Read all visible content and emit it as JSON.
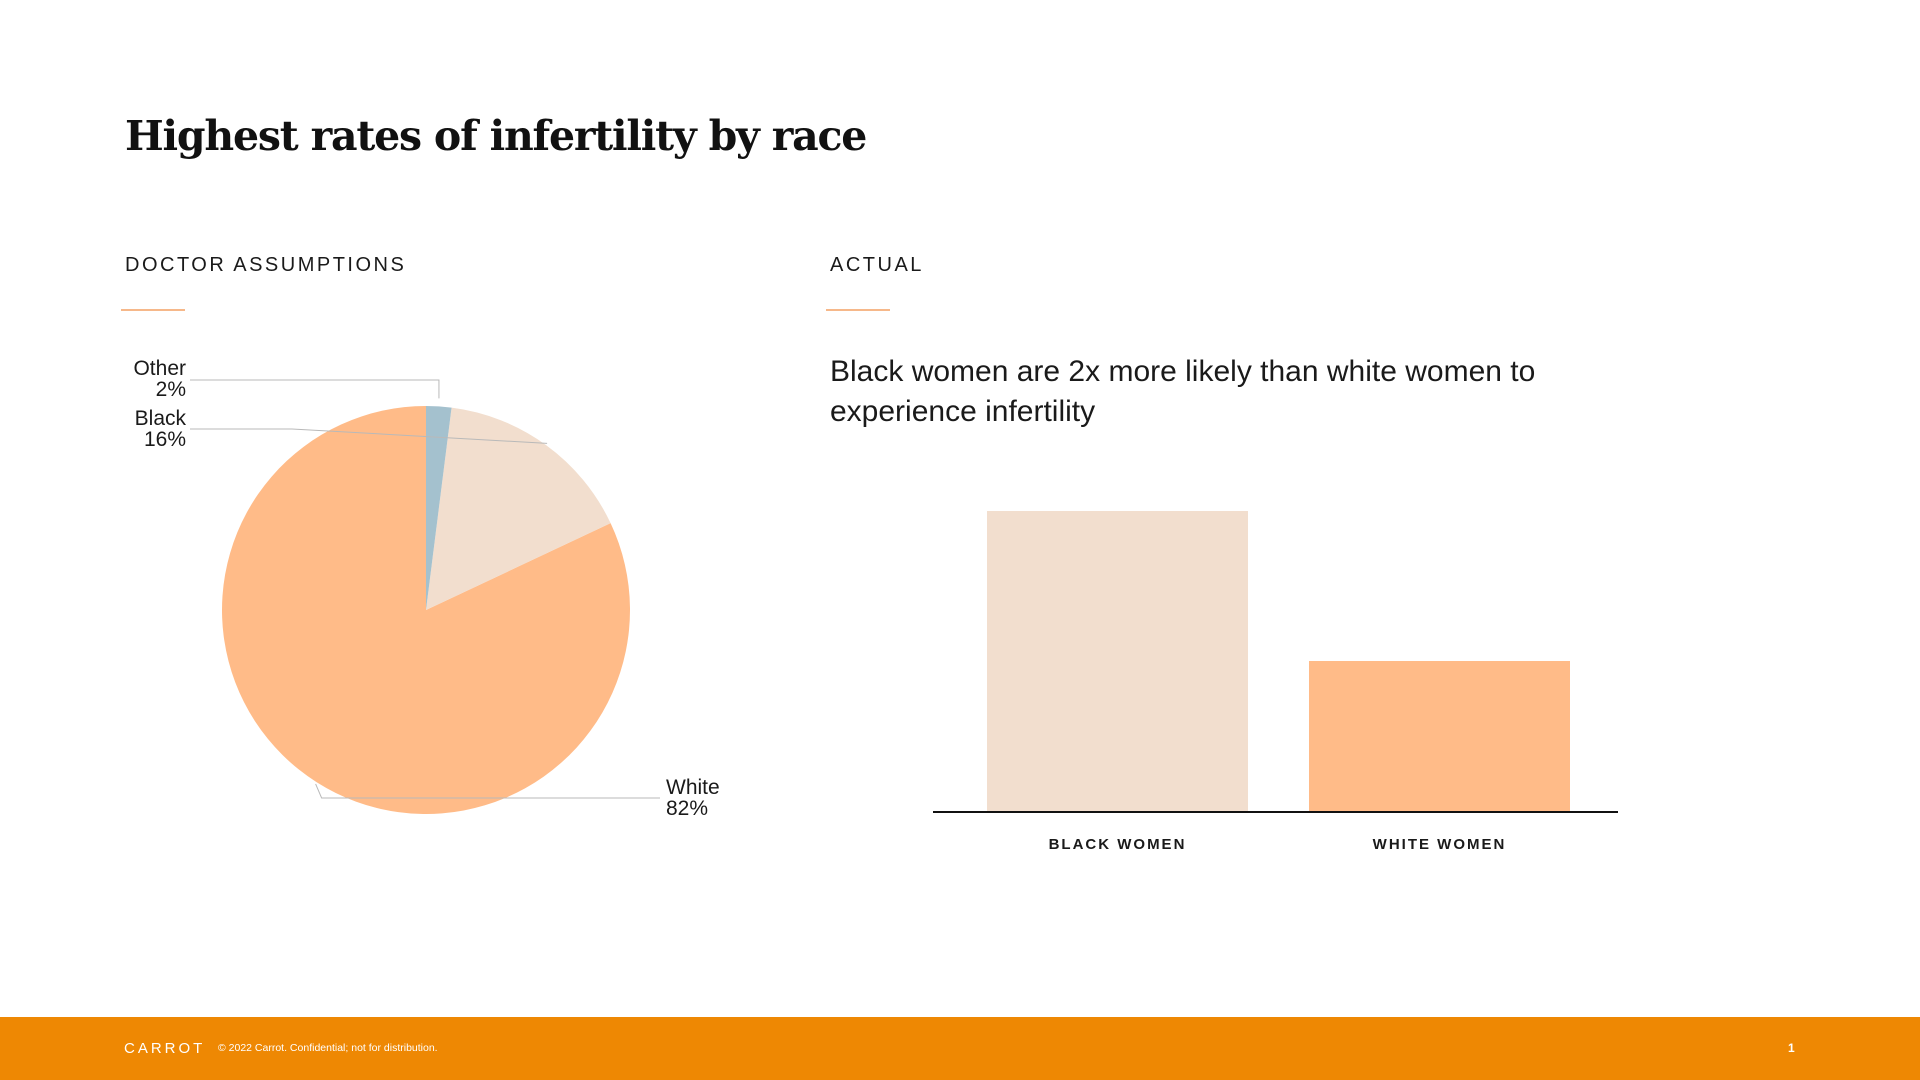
{
  "slide": {
    "title": "Highest rates of infertility by race",
    "left_label": "DOCTOR ASSUMPTIONS",
    "right_label": "ACTUAL",
    "headline": "Black women are 2x more likely than white women to experience infertility"
  },
  "colors": {
    "white": "#ffbb88",
    "black": "#f2dece",
    "other": "#a4c1ce",
    "rule": "#f6b88a",
    "footer": "#ee8803",
    "leader": "#b9b9b9"
  },
  "chart_data": [
    {
      "type": "pie",
      "title": "DOCTOR ASSUMPTIONS",
      "slices": [
        {
          "name": "White",
          "value": 82,
          "label": "82%"
        },
        {
          "name": "Black",
          "value": 16,
          "label": "16%"
        },
        {
          "name": "Other",
          "value": 2,
          "label": "2%"
        }
      ]
    },
    {
      "type": "bar",
      "title": "ACTUAL",
      "categories": [
        "BLACK WOMEN",
        "WHITE WOMEN"
      ],
      "values": [
        2,
        1
      ],
      "ylim": [
        0,
        2
      ]
    }
  ],
  "footer": {
    "logo": "CARROT",
    "copyright": "© 2022 Carrot. Confidential; not for distribution.",
    "page_number": "1"
  }
}
